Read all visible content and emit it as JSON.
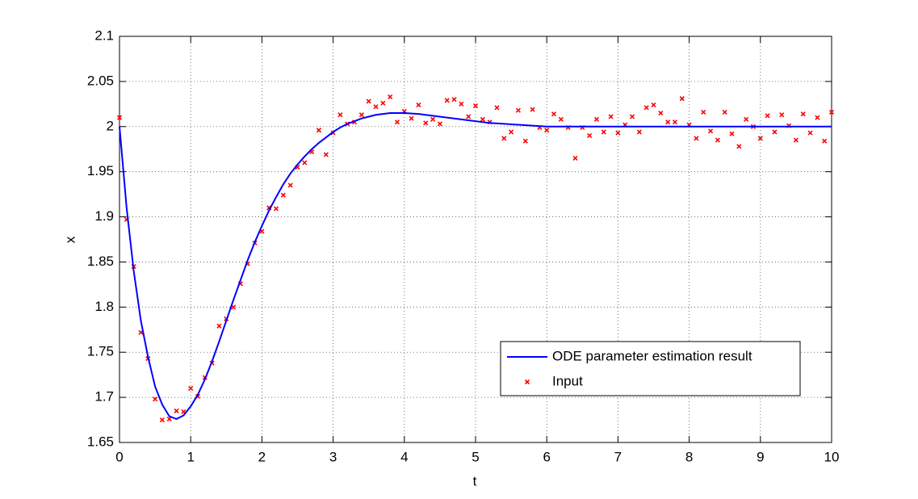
{
  "chart_data": {
    "type": "line_scatter",
    "xlabel": "t",
    "ylabel": "x",
    "xlim": [
      0,
      10
    ],
    "xticks": [
      0,
      1,
      2,
      3,
      4,
      5,
      6,
      7,
      8,
      9,
      10
    ],
    "ylim": [
      1.65,
      2.1
    ],
    "yticks": [
      1.65,
      1.7,
      1.75,
      1.8,
      1.85,
      1.9,
      1.95,
      2,
      2.05,
      2.1
    ],
    "grid": true,
    "legend": "lower right",
    "series": [
      {
        "name": "ODE parameter estimation result",
        "kind": "line",
        "color": "#0000ff",
        "x": [
          0,
          0.1,
          0.2,
          0.3,
          0.4,
          0.5,
          0.6,
          0.7,
          0.8,
          0.9,
          1.0,
          1.1,
          1.2,
          1.3,
          1.4,
          1.5,
          1.6,
          1.7,
          1.8,
          1.9,
          2.0,
          2.1,
          2.2,
          2.3,
          2.4,
          2.5,
          2.6,
          2.7,
          2.8,
          2.9,
          3.0,
          3.1,
          3.2,
          3.3,
          3.4,
          3.5,
          3.6,
          3.7,
          3.8,
          3.9,
          4.0,
          4.2,
          4.4,
          4.6,
          4.8,
          5.0,
          5.2,
          5.4,
          5.6,
          5.8,
          6.0,
          7,
          8,
          9,
          10
        ],
        "values": [
          2.0,
          1.91,
          1.84,
          1.785,
          1.745,
          1.712,
          1.692,
          1.679,
          1.676,
          1.68,
          1.69,
          1.703,
          1.72,
          1.74,
          1.762,
          1.785,
          1.808,
          1.83,
          1.852,
          1.872,
          1.89,
          1.907,
          1.922,
          1.936,
          1.948,
          1.958,
          1.967,
          1.975,
          1.982,
          1.988,
          1.994,
          1.999,
          2.003,
          2.006,
          2.009,
          2.011,
          2.013,
          2.014,
          2.015,
          2.015,
          2.015,
          2.014,
          2.012,
          2.01,
          2.008,
          2.006,
          2.004,
          2.003,
          2.002,
          2.001,
          2.0,
          2.0,
          2.0,
          2.0,
          2.0
        ]
      },
      {
        "name": "Input",
        "kind": "scatter",
        "color": "#ff0000",
        "x": [
          0,
          0.1,
          0.2,
          0.3,
          0.4,
          0.5,
          0.6,
          0.7,
          0.8,
          0.9,
          1.0,
          1.1,
          1.2,
          1.3,
          1.4,
          1.5,
          1.6,
          1.7,
          1.8,
          1.9,
          2.0,
          2.1,
          2.2,
          2.3,
          2.4,
          2.5,
          2.6,
          2.7,
          2.8,
          2.9,
          3.0,
          3.1,
          3.2,
          3.3,
          3.4,
          3.5,
          3.6,
          3.7,
          3.8,
          3.9,
          4.0,
          4.1,
          4.2,
          4.3,
          4.4,
          4.5,
          4.6,
          4.7,
          4.8,
          4.9,
          5.0,
          5.1,
          5.2,
          5.3,
          5.4,
          5.5,
          5.6,
          5.7,
          5.8,
          5.9,
          6.0,
          6.1,
          6.2,
          6.3,
          6.4,
          6.5,
          6.6,
          6.7,
          6.8,
          6.9,
          7.0,
          7.1,
          7.2,
          7.3,
          7.4,
          7.5,
          7.6,
          7.7,
          7.8,
          7.9,
          8.0,
          8.1,
          8.2,
          8.3,
          8.4,
          8.5,
          8.6,
          8.7,
          8.8,
          8.9,
          9.0,
          9.1,
          9.2,
          9.3,
          9.4,
          9.5,
          9.6,
          9.7,
          9.8,
          9.9,
          10.0
        ],
        "values": [
          2.01,
          1.897,
          1.845,
          1.772,
          1.743,
          1.698,
          1.675,
          1.676,
          1.685,
          1.684,
          1.71,
          1.701,
          1.722,
          1.738,
          1.779,
          1.787,
          1.8,
          1.826,
          1.848,
          1.871,
          1.884,
          1.91,
          1.909,
          1.924,
          1.935,
          1.955,
          1.96,
          1.972,
          1.996,
          1.969,
          1.993,
          2.013,
          2.003,
          2.005,
          2.013,
          2.028,
          2.022,
          2.026,
          2.033,
          2.005,
          2.017,
          2.009,
          2.024,
          2.004,
          2.008,
          2.003,
          2.029,
          2.03,
          2.025,
          2.011,
          2.023,
          2.008,
          2.005,
          2.021,
          1.987,
          1.994,
          2.018,
          1.984,
          2.019,
          1.999,
          1.996,
          2.014,
          2.008,
          1.999,
          1.965,
          1.999,
          1.99,
          2.008,
          1.994,
          2.011,
          1.993,
          2.002,
          2.011,
          1.994,
          2.021,
          2.024,
          2.015,
          2.005,
          2.005,
          2.031,
          2.002,
          1.987,
          2.016,
          1.995,
          1.985,
          2.016,
          1.992,
          1.978,
          2.008,
          2.0,
          1.987,
          2.012,
          1.994,
          2.013,
          2.001,
          1.985,
          2.014,
          1.993,
          2.01,
          1.984,
          2.016
        ]
      }
    ]
  }
}
